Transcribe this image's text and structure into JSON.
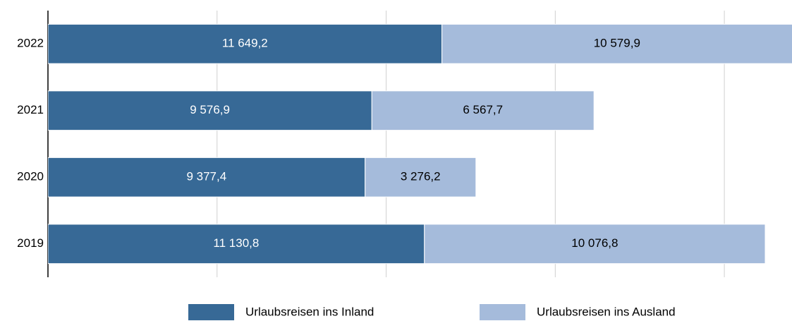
{
  "chart_data": {
    "type": "stacked_barh",
    "categories": [
      "2022",
      "2021",
      "2020",
      "2019"
    ],
    "series": [
      {
        "name": "Urlaubsreisen ins Inland",
        "color": "#376996",
        "label_color": "#ffffff",
        "values": [
          11649.2,
          9576.9,
          9377.4,
          11130.8
        ],
        "value_labels": [
          "11 649,2",
          "9 576,9",
          "9 377,4",
          "11 130,8"
        ]
      },
      {
        "name": "Urlaubsreisen ins Ausland",
        "color": "#a5bbdb",
        "label_color": "#000000",
        "values": [
          10579.9,
          6567.7,
          3276.2,
          10076.8
        ],
        "value_labels": [
          "10 579,9",
          "6 567,7",
          "3 276,2",
          "10 076,8"
        ]
      }
    ],
    "xlim": [
      0,
      22000
    ],
    "xticks": [
      0,
      5000,
      10000,
      15000,
      20000
    ],
    "grid": true,
    "legend": "bottom"
  }
}
